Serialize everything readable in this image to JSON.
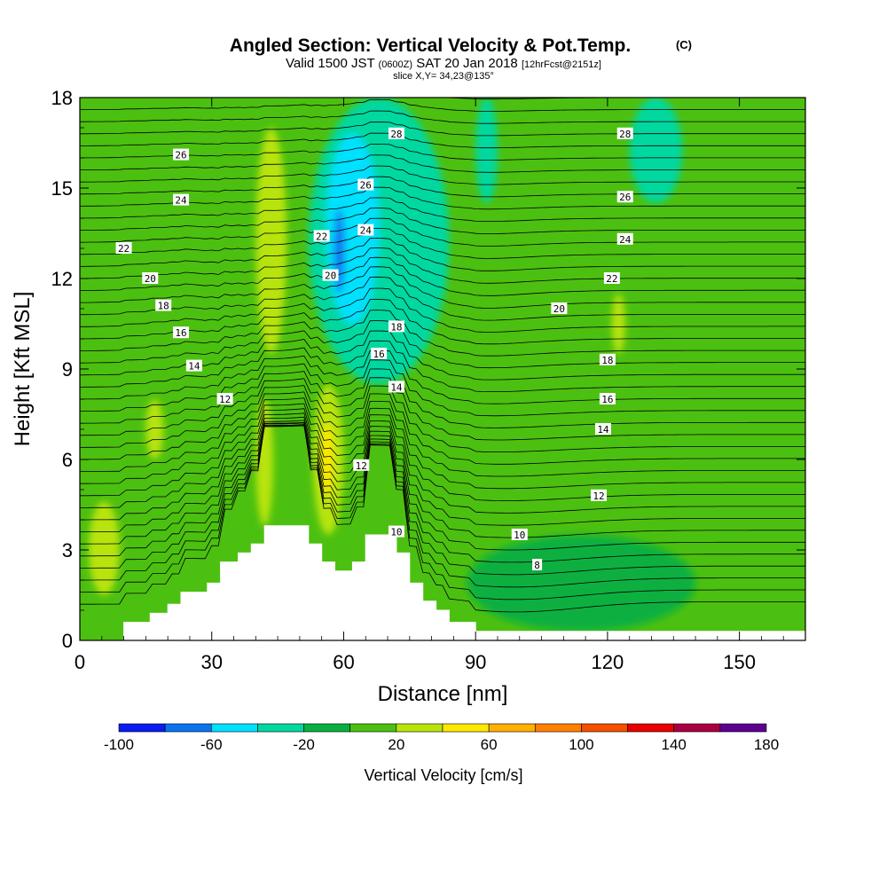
{
  "header": {
    "title": "Angled Section: Vertical Velocity & Pot.Temp.",
    "copyright": "(C)",
    "valid_prefix": "Valid 1500 JST",
    "valid_utc": "(0600Z)",
    "valid_date": "SAT 20 Jan 2018",
    "forecast": "[12hrFcst@2151z]",
    "slice": "slice X,Y= 34,23@135°"
  },
  "chart_data": {
    "type": "heatmap",
    "title": "Angled Section: Vertical Velocity & Pot.Temp.",
    "xlabel": "Distance [nm]",
    "ylabel": "Height [Kft MSL]",
    "xlim": [
      0,
      165
    ],
    "ylim": [
      0,
      18
    ],
    "x_ticks": [
      0,
      30,
      60,
      90,
      120,
      150
    ],
    "y_ticks": [
      0,
      3,
      6,
      9,
      12,
      15,
      18
    ],
    "grid": false,
    "colorbar": {
      "label": "Vertical Velocity [cm/s]",
      "levels": [
        -100,
        -80,
        -60,
        -40,
        -20,
        0,
        20,
        40,
        60,
        80,
        100,
        120,
        140,
        160,
        180
      ],
      "tick_labels": [
        "-100",
        "-60",
        "-20",
        "20",
        "60",
        "100",
        "140",
        "180"
      ],
      "colors": [
        "#0a1cf0",
        "#0a74f0",
        "#00e0ff",
        "#00d8a0",
        "#08b040",
        "#4cc010",
        "#b8e40c",
        "#ffe800",
        "#ffb000",
        "#ff8000",
        "#f45000",
        "#e80000",
        "#a80040",
        "#5c0090"
      ]
    },
    "velocity_regions": [
      {
        "level": "20-40",
        "label": "updraft near 57 nm",
        "x": [
          53,
          60
        ],
        "y": [
          3.5,
          8.5
        ]
      },
      {
        "level": "40-60",
        "label": "updraft core near 56 nm",
        "x": [
          55,
          57.5
        ],
        "y": [
          4.8,
          7.2
        ]
      },
      {
        "level": "20-40",
        "label": "updraft near 45 nm",
        "x": [
          40,
          47
        ],
        "y": [
          9.5,
          17
        ]
      },
      {
        "level": "20-40",
        "label": "updraft near 43 nm",
        "x": [
          40,
          44
        ],
        "y": [
          3.8,
          8
        ]
      },
      {
        "level": "20-40",
        "label": "updraft near 5 nm",
        "x": [
          2,
          9
        ],
        "y": [
          1.5,
          4.6
        ]
      },
      {
        "level": "20-40",
        "label": "updraft near 17 nm",
        "x": [
          15,
          19
        ],
        "y": [
          6,
          8
        ]
      },
      {
        "level": "20-40",
        "label": "updraft near 123 nm",
        "x": [
          121,
          124
        ],
        "y": [
          9.5,
          11.5
        ]
      },
      {
        "level": "-40--20",
        "label": "downdraft near 67 nm",
        "x": [
          52,
          84
        ],
        "y": [
          8.5,
          18
        ]
      },
      {
        "level": "-60--40",
        "label": "downdraft near 62 nm",
        "x": [
          56,
          68
        ],
        "y": [
          10.5,
          16.8
        ]
      },
      {
        "level": "-80--60",
        "label": "downdraft core near 59 nm",
        "x": [
          57.8,
          60.2
        ],
        "y": [
          11.5,
          14.3
        ]
      },
      {
        "level": "-40--20",
        "label": "downdraft near 130 nm",
        "x": [
          125,
          137
        ],
        "y": [
          14.5,
          18
        ]
      },
      {
        "level": "-40--20",
        "label": "downdraft near 92 nm",
        "x": [
          90,
          95
        ],
        "y": [
          14.5,
          18
        ]
      },
      {
        "level": "-20-0",
        "label": "sinking near 115 nm",
        "x": [
          88,
          140
        ],
        "y": [
          0.3,
          3.5
        ]
      }
    ],
    "theta_contour_labels": [
      {
        "value": "8",
        "x": 104,
        "y": 2.5
      },
      {
        "value": "10",
        "x": 100,
        "y": 3.5
      },
      {
        "value": "10",
        "x": 72,
        "y": 3.6
      },
      {
        "value": "12",
        "x": 33,
        "y": 8
      },
      {
        "value": "12",
        "x": 64,
        "y": 5.8
      },
      {
        "value": "12",
        "x": 118,
        "y": 4.8
      },
      {
        "value": "14",
        "x": 26,
        "y": 9.1
      },
      {
        "value": "14",
        "x": 72,
        "y": 8.4
      },
      {
        "value": "14",
        "x": 119,
        "y": 7
      },
      {
        "value": "16",
        "x": 23,
        "y": 10.2
      },
      {
        "value": "16",
        "x": 68,
        "y": 9.5
      },
      {
        "value": "16",
        "x": 120,
        "y": 8
      },
      {
        "value": "18",
        "x": 19,
        "y": 11.1
      },
      {
        "value": "18",
        "x": 72,
        "y": 10.4
      },
      {
        "value": "18",
        "x": 120,
        "y": 9.3
      },
      {
        "value": "20",
        "x": 16,
        "y": 12
      },
      {
        "value": "20",
        "x": 57,
        "y": 12.1
      },
      {
        "value": "20",
        "x": 109,
        "y": 11
      },
      {
        "value": "22",
        "x": 10,
        "y": 13
      },
      {
        "value": "22",
        "x": 55,
        "y": 13.4
      },
      {
        "value": "22",
        "x": 121,
        "y": 12
      },
      {
        "value": "24",
        "x": 23,
        "y": 14.6
      },
      {
        "value": "24",
        "x": 65,
        "y": 13.6
      },
      {
        "value": "24",
        "x": 124,
        "y": 13.3
      },
      {
        "value": "26",
        "x": 23,
        "y": 16.1
      },
      {
        "value": "26",
        "x": 65,
        "y": 15.1
      },
      {
        "value": "26",
        "x": 124,
        "y": 14.7
      },
      {
        "value": "28",
        "x": 72,
        "y": 16.8
      },
      {
        "value": "28",
        "x": 124,
        "y": 16.8
      }
    ],
    "terrain": [
      [
        0,
        0
      ],
      [
        10,
        0
      ],
      [
        10,
        0.6
      ],
      [
        16,
        0.6
      ],
      [
        16,
        0.9
      ],
      [
        20,
        0.9
      ],
      [
        20,
        1.2
      ],
      [
        23,
        1.2
      ],
      [
        23,
        1.6
      ],
      [
        29,
        1.6
      ],
      [
        29,
        1.9
      ],
      [
        32,
        1.9
      ],
      [
        32,
        2.6
      ],
      [
        36,
        2.6
      ],
      [
        36,
        2.9
      ],
      [
        39,
        2.9
      ],
      [
        39,
        3.2
      ],
      [
        42,
        3.2
      ],
      [
        42,
        3.8
      ],
      [
        52,
        3.8
      ],
      [
        52,
        3.2
      ],
      [
        55,
        3.2
      ],
      [
        55,
        2.6
      ],
      [
        58,
        2.6
      ],
      [
        58,
        2.3
      ],
      [
        62,
        2.3
      ],
      [
        62,
        2.6
      ],
      [
        65,
        2.6
      ],
      [
        65,
        3.5
      ],
      [
        72,
        3.5
      ],
      [
        72,
        2.9
      ],
      [
        75,
        2.9
      ],
      [
        75,
        1.9
      ],
      [
        78,
        1.9
      ],
      [
        78,
        1.3
      ],
      [
        81,
        1.3
      ],
      [
        81,
        1.0
      ],
      [
        84,
        1.0
      ],
      [
        84,
        0.6
      ],
      [
        90,
        0.6
      ],
      [
        90,
        0.3
      ],
      [
        165,
        0.3
      ],
      [
        165,
        0
      ],
      [
        0,
        0
      ]
    ]
  }
}
